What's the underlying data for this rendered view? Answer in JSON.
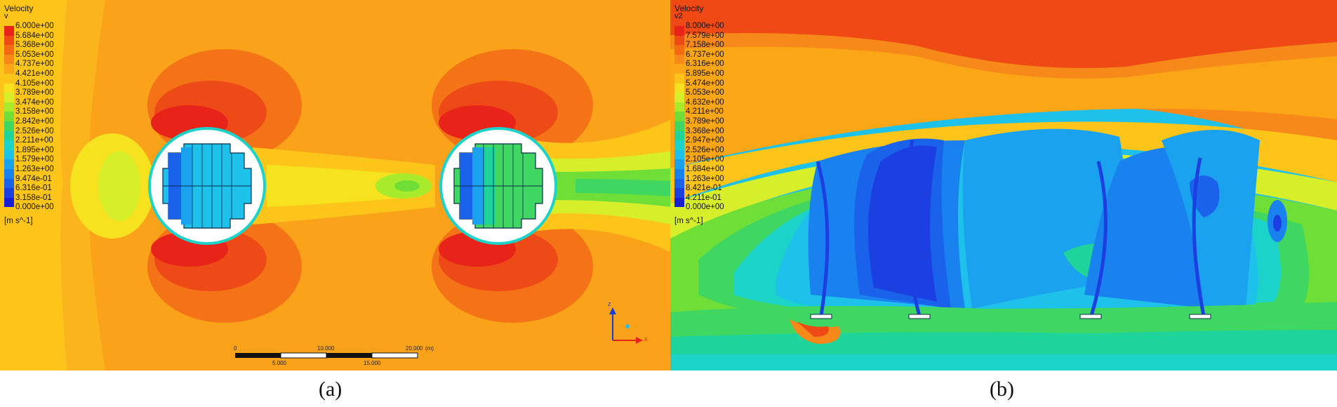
{
  "panel_a": {
    "legend_title": "Velocity",
    "legend_var": "v",
    "ticks": [
      "6.000e+00",
      "5.684e+00",
      "5.368e+00",
      "5.053e+00",
      "4.737e+00",
      "4.421e+00",
      "4.105e+00",
      "3.789e+00",
      "3.474e+00",
      "3.158e+00",
      "2.842e+00",
      "2.526e+00",
      "2.211e+00",
      "1.895e+00",
      "1.579e+00",
      "1.263e+00",
      "9.474e-01",
      "6.316e-01",
      "3.158e-01",
      "0.000e+00"
    ],
    "unit": "[m s^-1]",
    "scale_top": [
      "0",
      "10.000",
      "20.000",
      "(m)"
    ],
    "scale_bottom": [
      "5.000",
      "15.000"
    ],
    "axis_z": "z",
    "axis_x": "x",
    "caption": "(a)"
  },
  "panel_b": {
    "legend_title": "Velocity",
    "legend_var": "v2",
    "ticks": [
      "8.000e+00",
      "7.579e+00",
      "7.158e+00",
      "6.737e+00",
      "6.316e+00",
      "5.895e+00",
      "5.474e+00",
      "5.053e+00",
      "4.632e+00",
      "4.211e+00",
      "3.789e+00",
      "3.368e+00",
      "2.947e+00",
      "2.526e+00",
      "2.105e+00",
      "1.684e+00",
      "1.263e+00",
      "8.421e-01",
      "4.211e-01",
      "0.000e+00"
    ],
    "unit": "[m s^-1]",
    "caption": "(b)"
  },
  "colormap": [
    "#e8231a",
    "#ef4a16",
    "#f36a12",
    "#f7891a",
    "#fba616",
    "#fdc51a",
    "#f6e21e",
    "#d7ef2a",
    "#a8eb2c",
    "#6fdf38",
    "#3fd661",
    "#1ed49a",
    "#1bd3c9",
    "#1ec1ea",
    "#1aa2ef",
    "#1a82ef",
    "#1a62e9",
    "#1b3fe0",
    "#1a1fd6",
    "#1508c4"
  ]
}
